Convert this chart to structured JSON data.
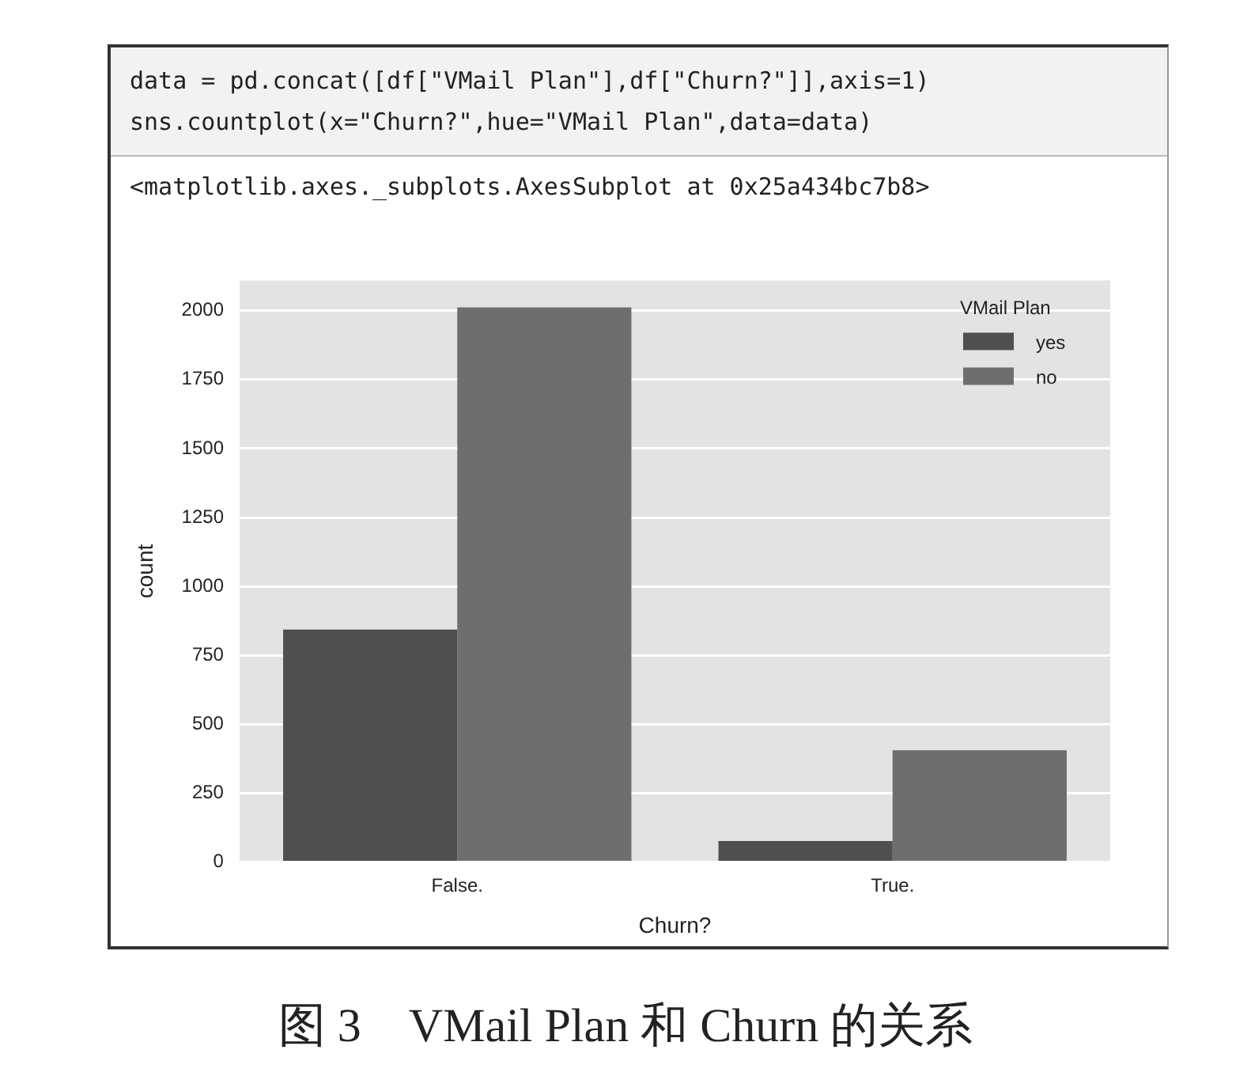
{
  "chart_data": {
    "type": "bar",
    "xlabel": "Churn?",
    "ylabel": "count",
    "legend_title": "VMail Plan",
    "categories": [
      "False.",
      "True."
    ],
    "series": [
      {
        "name": "yes",
        "color": "#4f4f4f",
        "values": [
          843,
          76
        ]
      },
      {
        "name": "no",
        "color": "#6e6e6e",
        "values": [
          2012,
          406
        ]
      }
    ],
    "ylim": [
      0,
      2110
    ],
    "yticks": [
      0,
      250,
      500,
      750,
      1000,
      1250,
      1500,
      1750,
      2000
    ],
    "grid": "y",
    "legend": "top right",
    "annotations": [
      "data = pd.concat([df[\"VMail Plan\"],df[\"Churn?\"]],axis=1)",
      "sns.countplot(x=\"Churn?\",hue=\"VMail Plan\",data=data)",
      "<matplotlib.axes._subplots.AxesSubplot at 0x25a434bc7b8>",
      "图 3　VMail Plan 和 Churn 的关系"
    ]
  }
}
